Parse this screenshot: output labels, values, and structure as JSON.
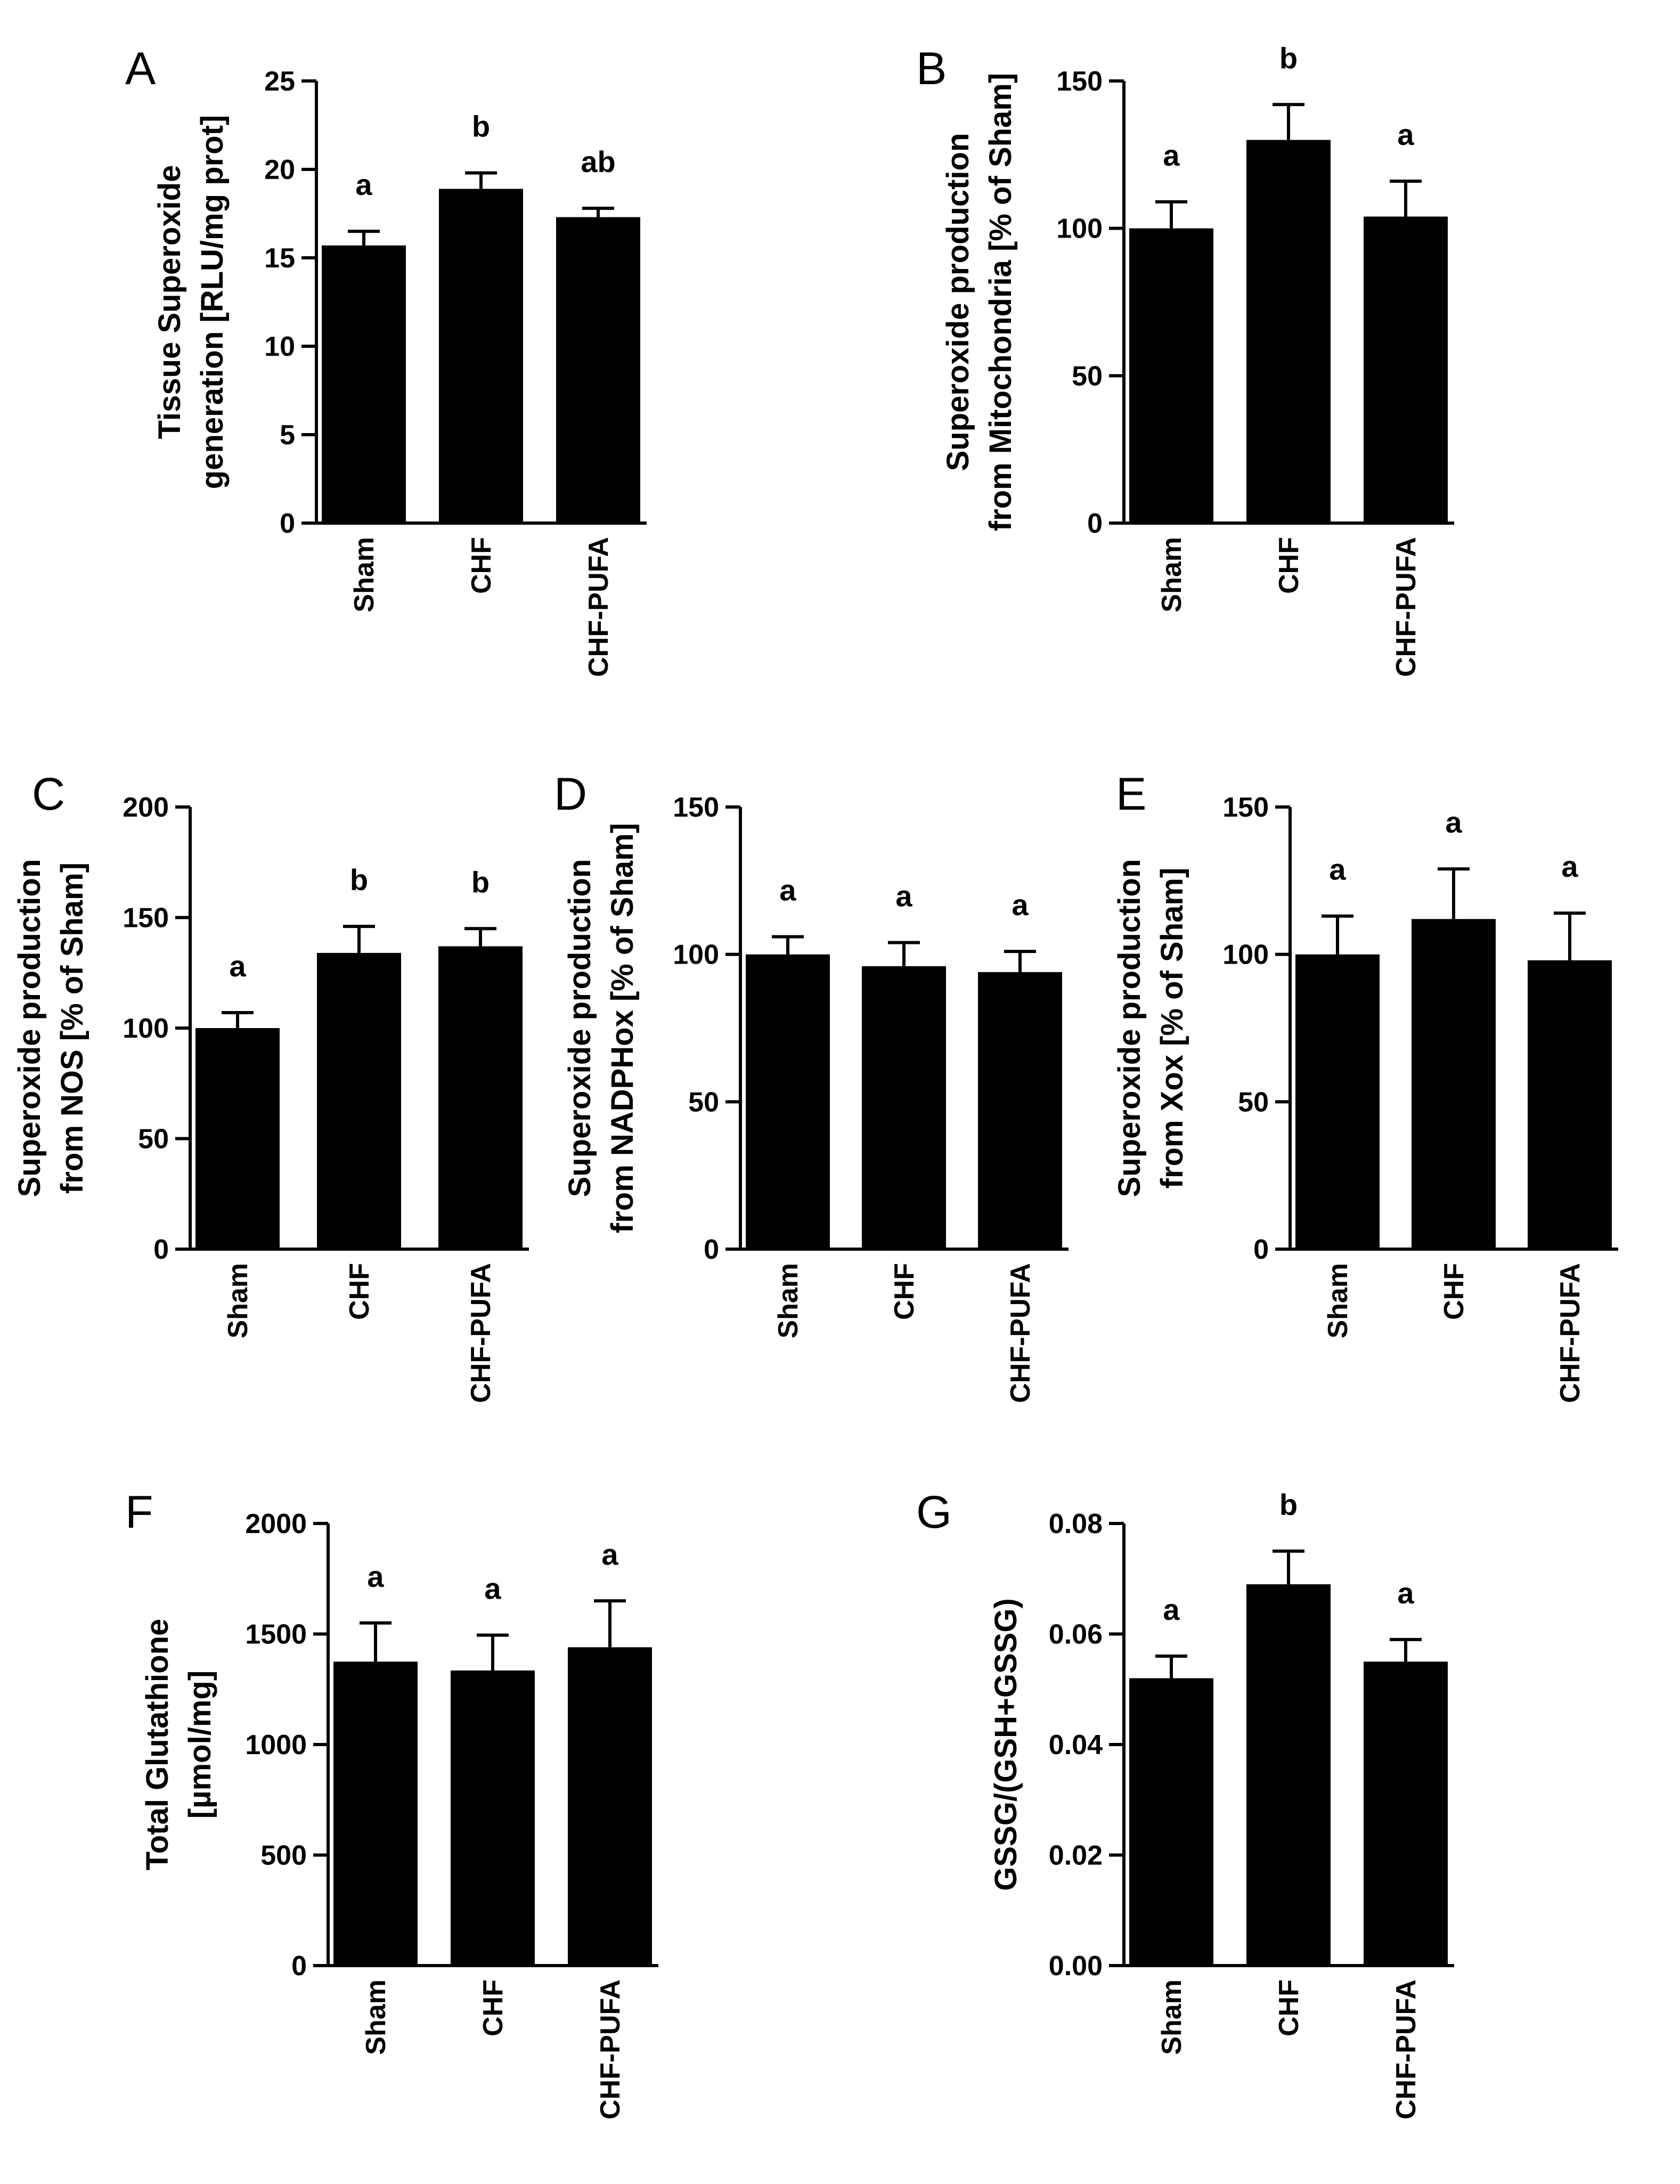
{
  "chart_data": [
    {
      "id": "A",
      "type": "bar",
      "panel_label": "A",
      "categories": [
        "Sham",
        "CHF",
        "CHF-PUFA"
      ],
      "values": [
        15.7,
        18.9,
        17.3
      ],
      "errors": [
        0.8,
        0.9,
        0.5
      ],
      "significance": [
        "a",
        "b",
        "ab"
      ],
      "ylabel_lines": [
        "Tissue Superoxide",
        "generation [RLU/mg prot]"
      ],
      "ylim": [
        0,
        25
      ],
      "yticks": [
        0,
        5,
        10,
        15,
        20,
        25
      ],
      "ytick_labels": [
        "0",
        "5",
        "10",
        "15",
        "20",
        "25"
      ]
    },
    {
      "id": "B",
      "type": "bar",
      "panel_label": "B",
      "categories": [
        "Sham",
        "CHF",
        "CHF-PUFA"
      ],
      "values": [
        100,
        130,
        104
      ],
      "errors": [
        9,
        12,
        12
      ],
      "significance": [
        "a",
        "b",
        "a"
      ],
      "ylabel_lines": [
        "Superoxide production",
        "from Mitochondria [% of Sham]"
      ],
      "ylim": [
        0,
        150
      ],
      "yticks": [
        0,
        50,
        100,
        150
      ],
      "ytick_labels": [
        "0",
        "50",
        "100",
        "150"
      ]
    },
    {
      "id": "C",
      "type": "bar",
      "panel_label": "C",
      "categories": [
        "Sham",
        "CHF",
        "CHF-PUFA"
      ],
      "values": [
        100,
        134,
        137
      ],
      "errors": [
        7,
        12,
        8
      ],
      "significance": [
        "a",
        "b",
        "b"
      ],
      "ylabel_lines": [
        "Superoxide production",
        "from NOS [% of Sham]"
      ],
      "ylim": [
        0,
        200
      ],
      "yticks": [
        0,
        50,
        100,
        150,
        200
      ],
      "ytick_labels": [
        "0",
        "50",
        "100",
        "150",
        "200"
      ]
    },
    {
      "id": "D",
      "type": "bar",
      "panel_label": "D",
      "categories": [
        "Sham",
        "CHF",
        "CHF-PUFA"
      ],
      "values": [
        100,
        96,
        94
      ],
      "errors": [
        6,
        8,
        7
      ],
      "significance": [
        "a",
        "a",
        "a"
      ],
      "ylabel_lines": [
        "Superoxide production",
        "from NADPHox [% of Sham]"
      ],
      "ylim": [
        0,
        150
      ],
      "yticks": [
        0,
        50,
        100,
        150
      ],
      "ytick_labels": [
        "0",
        "50",
        "100",
        "150"
      ]
    },
    {
      "id": "E",
      "type": "bar",
      "panel_label": "E",
      "categories": [
        "Sham",
        "CHF",
        "CHF-PUFA"
      ],
      "values": [
        100,
        112,
        98
      ],
      "errors": [
        13,
        17,
        16
      ],
      "significance": [
        "a",
        "a",
        "a"
      ],
      "ylabel_lines": [
        "Superoxide production",
        "from Xox [% of Sham]"
      ],
      "ylim": [
        0,
        150
      ],
      "yticks": [
        0,
        50,
        100,
        150
      ],
      "ytick_labels": [
        "0",
        "50",
        "100",
        "150"
      ]
    },
    {
      "id": "F",
      "type": "bar",
      "panel_label": "F",
      "categories": [
        "Sham",
        "CHF",
        "CHF-PUFA"
      ],
      "values": [
        1375,
        1335,
        1440
      ],
      "errors": [
        175,
        160,
        210
      ],
      "significance": [
        "a",
        "a",
        "a"
      ],
      "ylabel_lines": [
        "Total Glutathione",
        "[µmol/mg]"
      ],
      "ylim": [
        0,
        2000
      ],
      "yticks": [
        0,
        500,
        1000,
        1500,
        2000
      ],
      "ytick_labels": [
        "0",
        "500",
        "1000",
        "1500",
        "2000"
      ]
    },
    {
      "id": "G",
      "type": "bar",
      "panel_label": "G",
      "categories": [
        "Sham",
        "CHF",
        "CHF-PUFA"
      ],
      "values": [
        0.052,
        0.069,
        0.055
      ],
      "errors": [
        0.004,
        0.006,
        0.004
      ],
      "significance": [
        "a",
        "b",
        "a"
      ],
      "ylabel_lines": [
        "GSSG/(GSH+GSSG)"
      ],
      "ylim": [
        0,
        0.08
      ],
      "yticks": [
        0,
        0.02,
        0.04,
        0.06,
        0.08
      ],
      "ytick_labels": [
        "0.00",
        "0.02",
        "0.04",
        "0.06",
        "0.08"
      ]
    }
  ]
}
